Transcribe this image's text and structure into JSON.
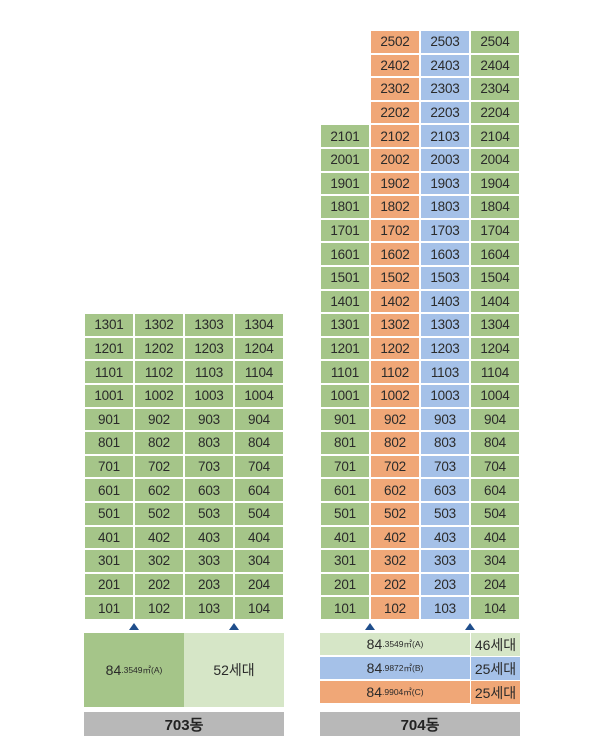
{
  "colors": {
    "green": "#a5c589",
    "orange": "#f0a777",
    "blue": "#a5c1e8",
    "pale_green": "#d6e6c7",
    "title_gray": "#b8b8b8",
    "arrow": "#1f4e8c"
  },
  "chart_data": [
    {
      "type": "table",
      "title": "703동",
      "building": "703동",
      "floors": [
        13,
        12,
        11,
        10,
        9,
        8,
        7,
        6,
        5,
        4,
        3,
        2,
        1
      ],
      "lines": [
        "01",
        "02",
        "03",
        "04"
      ],
      "units": [
        [
          "1301",
          "1302",
          "1303",
          "1304"
        ],
        [
          "1201",
          "1202",
          "1203",
          "1204"
        ],
        [
          "1101",
          "1102",
          "1103",
          "1104"
        ],
        [
          "1001",
          "1002",
          "1003",
          "1004"
        ],
        [
          "901",
          "902",
          "903",
          "904"
        ],
        [
          "801",
          "802",
          "803",
          "804"
        ],
        [
          "701",
          "702",
          "703",
          "704"
        ],
        [
          "601",
          "602",
          "603",
          "604"
        ],
        [
          "501",
          "502",
          "503",
          "504"
        ],
        [
          "401",
          "402",
          "403",
          "404"
        ],
        [
          "301",
          "302",
          "303",
          "304"
        ],
        [
          "201",
          "202",
          "203",
          "204"
        ],
        [
          "101",
          "102",
          "103",
          "104"
        ]
      ],
      "unit_types": [
        "A",
        "A",
        "A",
        "A"
      ],
      "entrances_below_lines": [
        2,
        4
      ],
      "legend": [
        {
          "size_main": "84",
          "size_decimal": ".3549㎡(A)",
          "type": "A",
          "count": "52세대"
        }
      ]
    },
    {
      "type": "table",
      "title": "704동",
      "building": "704동",
      "floors": [
        25,
        24,
        23,
        22,
        21,
        20,
        19,
        18,
        17,
        16,
        15,
        14,
        13,
        12,
        11,
        10,
        9,
        8,
        7,
        6,
        5,
        4,
        3,
        2,
        1
      ],
      "lines": [
        "01",
        "02",
        "03",
        "04"
      ],
      "units": [
        [
          "",
          "2502",
          "2503",
          "2504"
        ],
        [
          "",
          "2402",
          "2403",
          "2404"
        ],
        [
          "",
          "2302",
          "2303",
          "2304"
        ],
        [
          "",
          "2202",
          "2203",
          "2204"
        ],
        [
          "2101",
          "2102",
          "2103",
          "2104"
        ],
        [
          "2001",
          "2002",
          "2003",
          "2004"
        ],
        [
          "1901",
          "1902",
          "1903",
          "1904"
        ],
        [
          "1801",
          "1802",
          "1803",
          "1804"
        ],
        [
          "1701",
          "1702",
          "1703",
          "1704"
        ],
        [
          "1601",
          "1602",
          "1603",
          "1604"
        ],
        [
          "1501",
          "1502",
          "1503",
          "1504"
        ],
        [
          "1401",
          "1402",
          "1403",
          "1404"
        ],
        [
          "1301",
          "1302",
          "1303",
          "1304"
        ],
        [
          "1201",
          "1202",
          "1203",
          "1204"
        ],
        [
          "1101",
          "1102",
          "1103",
          "1104"
        ],
        [
          "1001",
          "1002",
          "1003",
          "1004"
        ],
        [
          "901",
          "902",
          "903",
          "904"
        ],
        [
          "801",
          "802",
          "803",
          "804"
        ],
        [
          "701",
          "702",
          "703",
          "704"
        ],
        [
          "601",
          "602",
          "603",
          "604"
        ],
        [
          "501",
          "502",
          "503",
          "504"
        ],
        [
          "401",
          "402",
          "403",
          "404"
        ],
        [
          "301",
          "302",
          "303",
          "304"
        ],
        [
          "201",
          "202",
          "203",
          "204"
        ],
        [
          "101",
          "102",
          "103",
          "104"
        ]
      ],
      "unit_types": [
        "A",
        "C",
        "B",
        "A"
      ],
      "entrances_below_lines": [
        2,
        4
      ],
      "legend": [
        {
          "size_main": "84",
          "size_decimal": ".3549㎡(A)",
          "type": "A",
          "count": "46세대"
        },
        {
          "size_main": "84",
          "size_decimal": ".9872㎡(B)",
          "type": "B",
          "count": "25세대"
        },
        {
          "size_main": "84",
          "size_decimal": ".9904㎡(C)",
          "type": "C",
          "count": "25세대"
        }
      ]
    }
  ]
}
